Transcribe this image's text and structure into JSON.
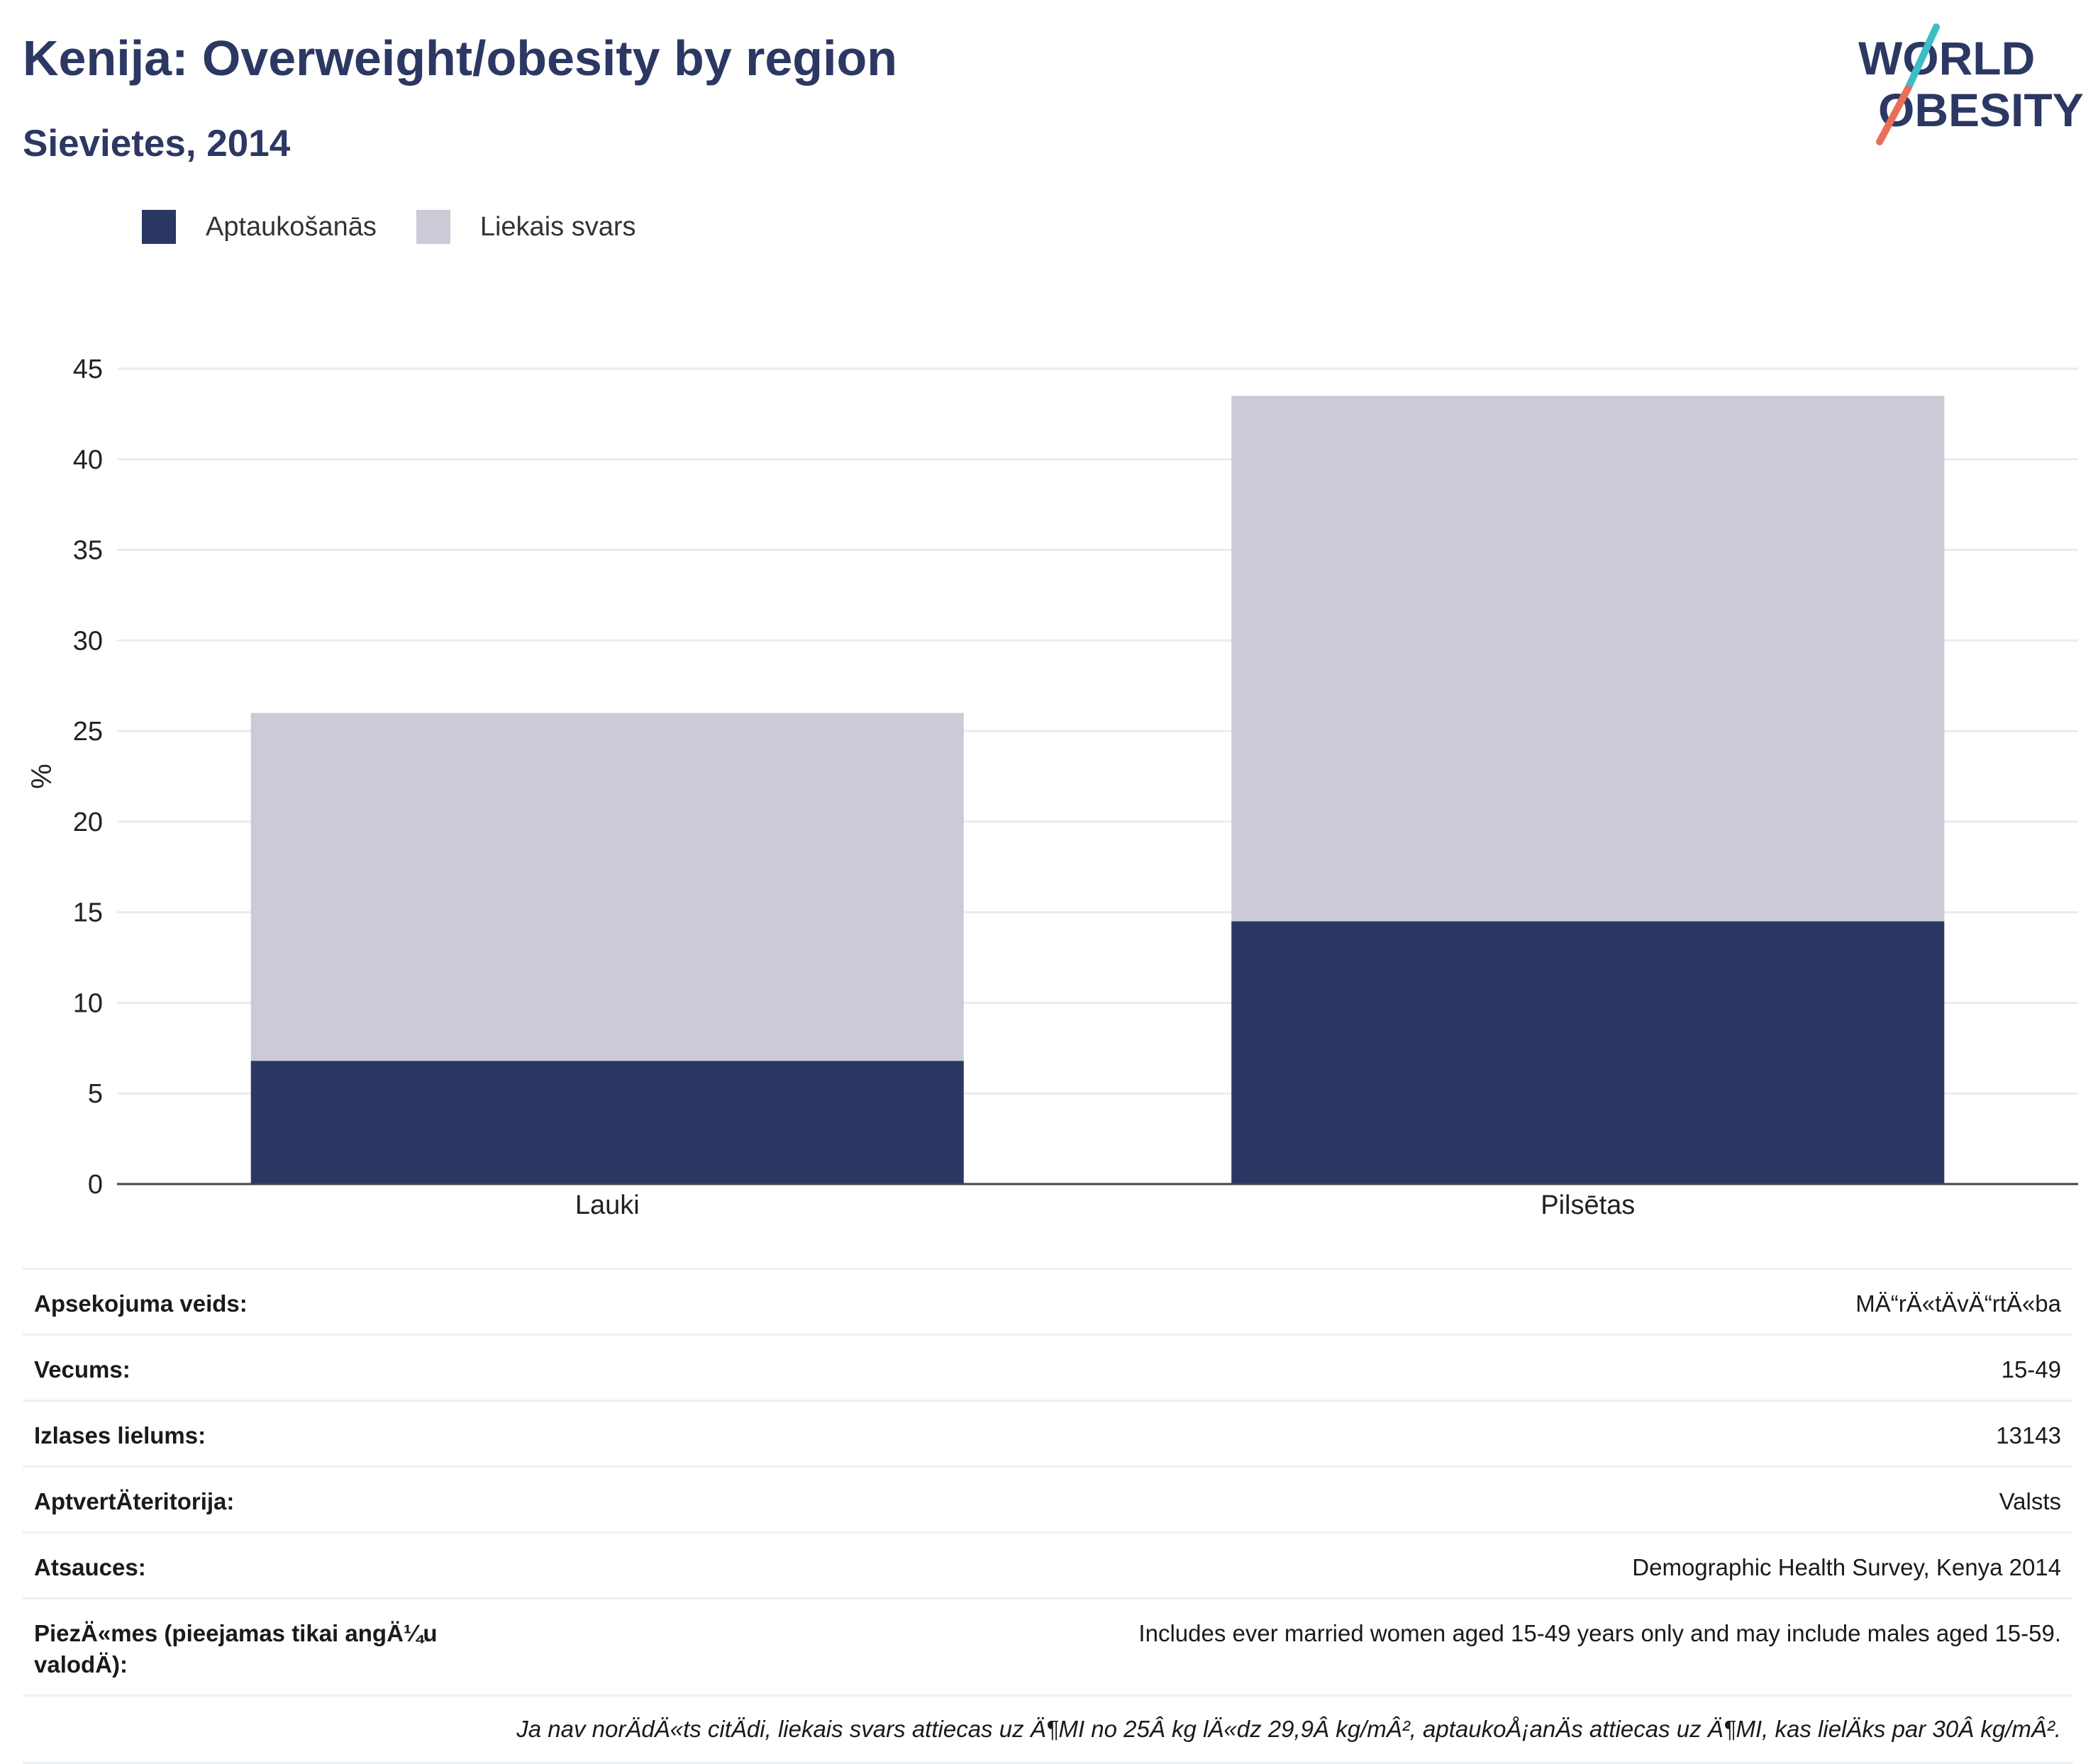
{
  "header": {
    "title": "Kenija: Overweight/obesity by region",
    "subtitle": "Sievietes, 2014"
  },
  "logo": {
    "line1": "WORLD",
    "line2": "OBESITY",
    "colors": {
      "text": "#2c3863",
      "slash_top": "#3bbfc4",
      "slash_bottom": "#e8705b"
    }
  },
  "legend": [
    {
      "label": "Aptaukošanās",
      "color": "#2b3763"
    },
    {
      "label": "Liekais svars",
      "color": "#cacbd7"
    }
  ],
  "chart_data": {
    "type": "bar",
    "stacked": true,
    "categories": [
      "Lauki",
      "Pilsētas"
    ],
    "series": [
      {
        "name": "Aptaukošanās",
        "values": [
          6.8,
          14.5
        ],
        "color": "#2b3763"
      },
      {
        "name": "Liekais svars",
        "values": [
          19.2,
          29.0
        ],
        "color": "#cacbd7"
      }
    ],
    "ylabel": "%",
    "ylim": [
      0,
      45
    ],
    "yticks": [
      0,
      5,
      10,
      15,
      20,
      25,
      30,
      35,
      40,
      45
    ],
    "grid": true,
    "legend_position": "top-left"
  },
  "info": [
    {
      "label": "Apsekojuma veids:",
      "value": "MÄ“rÄ«tÄvÄ“rtÄ«ba"
    },
    {
      "label": "Vecums:",
      "value": "15-49"
    },
    {
      "label": "Izlases lielums:",
      "value": "13143"
    },
    {
      "label": "AptvertÄteritorija:",
      "value": "Valsts"
    },
    {
      "label": "Atsauces:",
      "value": "Demographic Health Survey, Kenya 2014"
    },
    {
      "label": "PiezÄ«mes (pieejamas tikai angÄ¼u valodÄ):",
      "value": "Includes ever married women aged 15-49 years only and may include males aged 15-59."
    }
  ],
  "footnote": "Ja nav norÄdÄ«ts citÄdi, liekais svars attiecas uz Ä¶MI no 25Â kg lÄ«dz 29,9Â kg/mÂ², aptaukoÅ¡anÄs attiecas uz Ä¶MI, kas lielÄks par 30Â kg/mÂ²."
}
